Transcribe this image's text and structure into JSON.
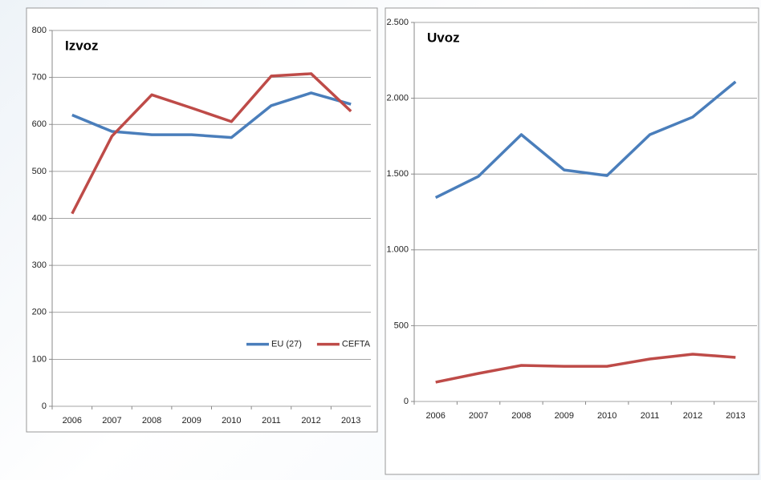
{
  "chart_data": [
    {
      "type": "line",
      "title": "Izvoz",
      "x": [
        "2006",
        "2007",
        "2008",
        "2009",
        "2010",
        "2011",
        "2012",
        "2013"
      ],
      "series": [
        {
          "name": "EU (27)",
          "color": "#4a7ebb",
          "values": [
            620,
            585,
            578,
            578,
            572,
            640,
            667,
            643
          ]
        },
        {
          "name": "CEFTA",
          "color": "#be4b48",
          "values": [
            410,
            575,
            663,
            635,
            606,
            703,
            708,
            628
          ]
        }
      ],
      "ylim": [
        0,
        800
      ],
      "yticks": [
        0,
        100,
        200,
        300,
        400,
        500,
        600,
        700,
        800
      ],
      "grid": true,
      "legend": "lower-right"
    },
    {
      "type": "line",
      "title": "Uvoz",
      "x": [
        "2006",
        "2007",
        "2008",
        "2009",
        "2010",
        "2011",
        "2012",
        "2013"
      ],
      "series": [
        {
          "color": "#4a7ebb",
          "values": [
            1345,
            1485,
            1760,
            1527,
            1490,
            1760,
            1876,
            2109
          ]
        },
        {
          "color": "#be4b48",
          "values": [
            127,
            185,
            238,
            232,
            232,
            280,
            312,
            291
          ]
        }
      ],
      "ylim": [
        0,
        2500
      ],
      "yticks": [
        0,
        500,
        {
          "value": 1000,
          "label": "1.000"
        },
        {
          "value": 1500,
          "label": "1.500"
        },
        {
          "value": 2000,
          "label": "2.000"
        },
        {
          "value": 2500,
          "label": "2.500"
        }
      ],
      "grid": true
    }
  ]
}
